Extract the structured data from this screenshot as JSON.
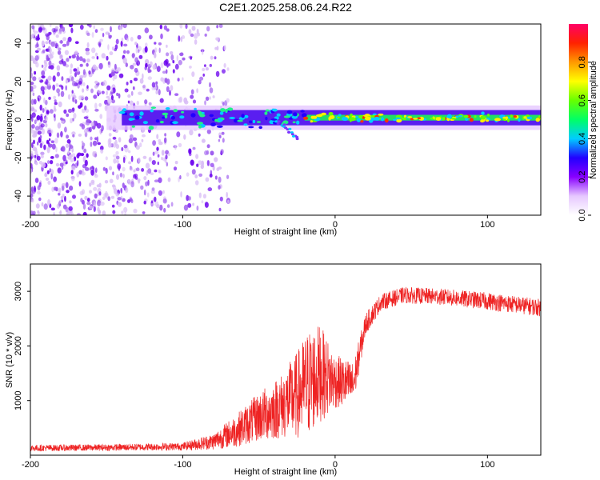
{
  "title": "C2E1.2025.258.06.24.R22",
  "chart_data": [
    {
      "type": "heatmap",
      "xlabel": "Height of straight line (km)",
      "ylabel": "Frequency (Hz)",
      "xlim": [
        -200,
        135
      ],
      "ylim": [
        -50,
        50
      ],
      "xticks": [
        -200,
        -100,
        0,
        100
      ],
      "yticks": [
        -40,
        -20,
        0,
        20,
        40
      ],
      "xtick_labels": [
        "-200",
        "-100",
        "0",
        "100"
      ],
      "ytick_labels": [
        "-40",
        "-20",
        "0",
        "20",
        "40"
      ],
      "colorbar": {
        "label": "Normalized spectral amplitude",
        "range": [
          0,
          1
        ],
        "ticks": [
          0,
          0.2,
          0.4,
          0.6,
          0.8
        ],
        "tick_labels": [
          "0.0",
          "0.2",
          "0.4",
          "0.6",
          "0.8"
        ]
      },
      "band": {
        "center_freq": 1,
        "half_width": 4
      },
      "scatter_extent": {
        "x_end": -70,
        "freq_half_range": 50
      }
    },
    {
      "type": "line",
      "xlabel": "Height of straight line (km)",
      "ylabel": "SNR (10 * v/v)",
      "xlim": [
        -200,
        135
      ],
      "ylim": [
        0,
        3500
      ],
      "xticks": [
        -200,
        -100,
        0,
        100
      ],
      "yticks": [
        1000,
        2000,
        3000
      ],
      "xtick_labels": [
        "-200",
        "-100",
        "0",
        "100"
      ],
      "ytick_labels": [
        "1000",
        "2000",
        "3000"
      ],
      "series": [
        {
          "name": "SNR",
          "color": "#ee2222",
          "trend_x": [
            -200,
            -150,
            -100,
            -80,
            -65,
            -50,
            -35,
            -25,
            -18,
            -10,
            0,
            12,
            20,
            30,
            45,
            70,
            100,
            135
          ],
          "trend_y": [
            130,
            140,
            160,
            250,
            450,
            700,
            900,
            1100,
            1300,
            1500,
            1350,
            1300,
            2400,
            2800,
            2930,
            2900,
            2820,
            2700
          ],
          "noise": [
            60,
            60,
            70,
            150,
            300,
            450,
            600,
            800,
            1000,
            900,
            500,
            400,
            200,
            150,
            150,
            150,
            160,
            160
          ]
        }
      ]
    }
  ]
}
